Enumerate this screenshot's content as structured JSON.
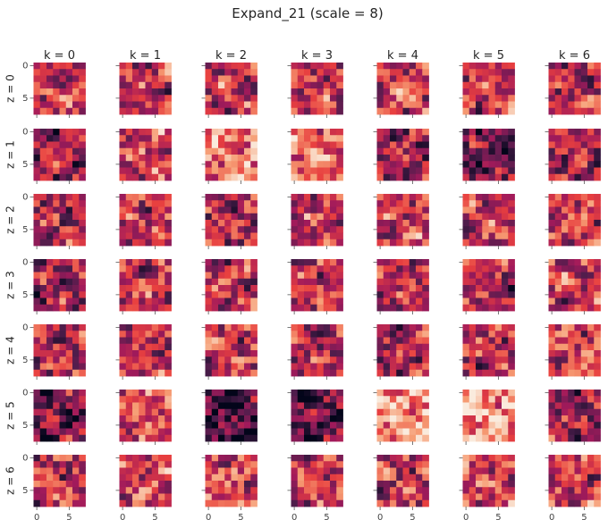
{
  "chart_data": {
    "type": "heatmap",
    "title": "Expand_21 (scale = 8)",
    "col_labels": [
      "k = 0",
      "k = 1",
      "k = 2",
      "k = 3",
      "k = 4",
      "k = 5",
      "k = 6"
    ],
    "row_labels": [
      "z = 0",
      "z = 1",
      "z = 2",
      "z = 3",
      "z = 4",
      "z = 5",
      "z = 6"
    ],
    "y_tick_labels": [
      "0",
      "5"
    ],
    "y_tick_values": [
      0,
      5
    ],
    "x_tick_labels": [
      "0",
      "5"
    ],
    "x_tick_values": [
      0,
      5
    ],
    "grid_size": 8,
    "colormap": "rocket",
    "colormap_stops": [
      "#03051a",
      "#4c1d4b",
      "#a11a5b",
      "#e83f3f",
      "#f69c73",
      "#faebdd"
    ],
    "panel_mean_levels": [
      [
        0.55,
        0.5,
        0.5,
        0.5,
        0.55,
        0.5,
        0.45
      ],
      [
        0.4,
        0.55,
        0.7,
        0.7,
        0.4,
        0.3,
        0.4
      ],
      [
        0.45,
        0.5,
        0.45,
        0.5,
        0.55,
        0.55,
        0.55
      ],
      [
        0.4,
        0.5,
        0.5,
        0.5,
        0.45,
        0.45,
        0.55
      ],
      [
        0.45,
        0.5,
        0.5,
        0.45,
        0.45,
        0.5,
        0.55
      ],
      [
        0.3,
        0.6,
        0.2,
        0.25,
        0.8,
        0.8,
        0.4
      ],
      [
        0.5,
        0.55,
        0.6,
        0.55,
        0.5,
        0.55,
        0.55
      ]
    ]
  }
}
